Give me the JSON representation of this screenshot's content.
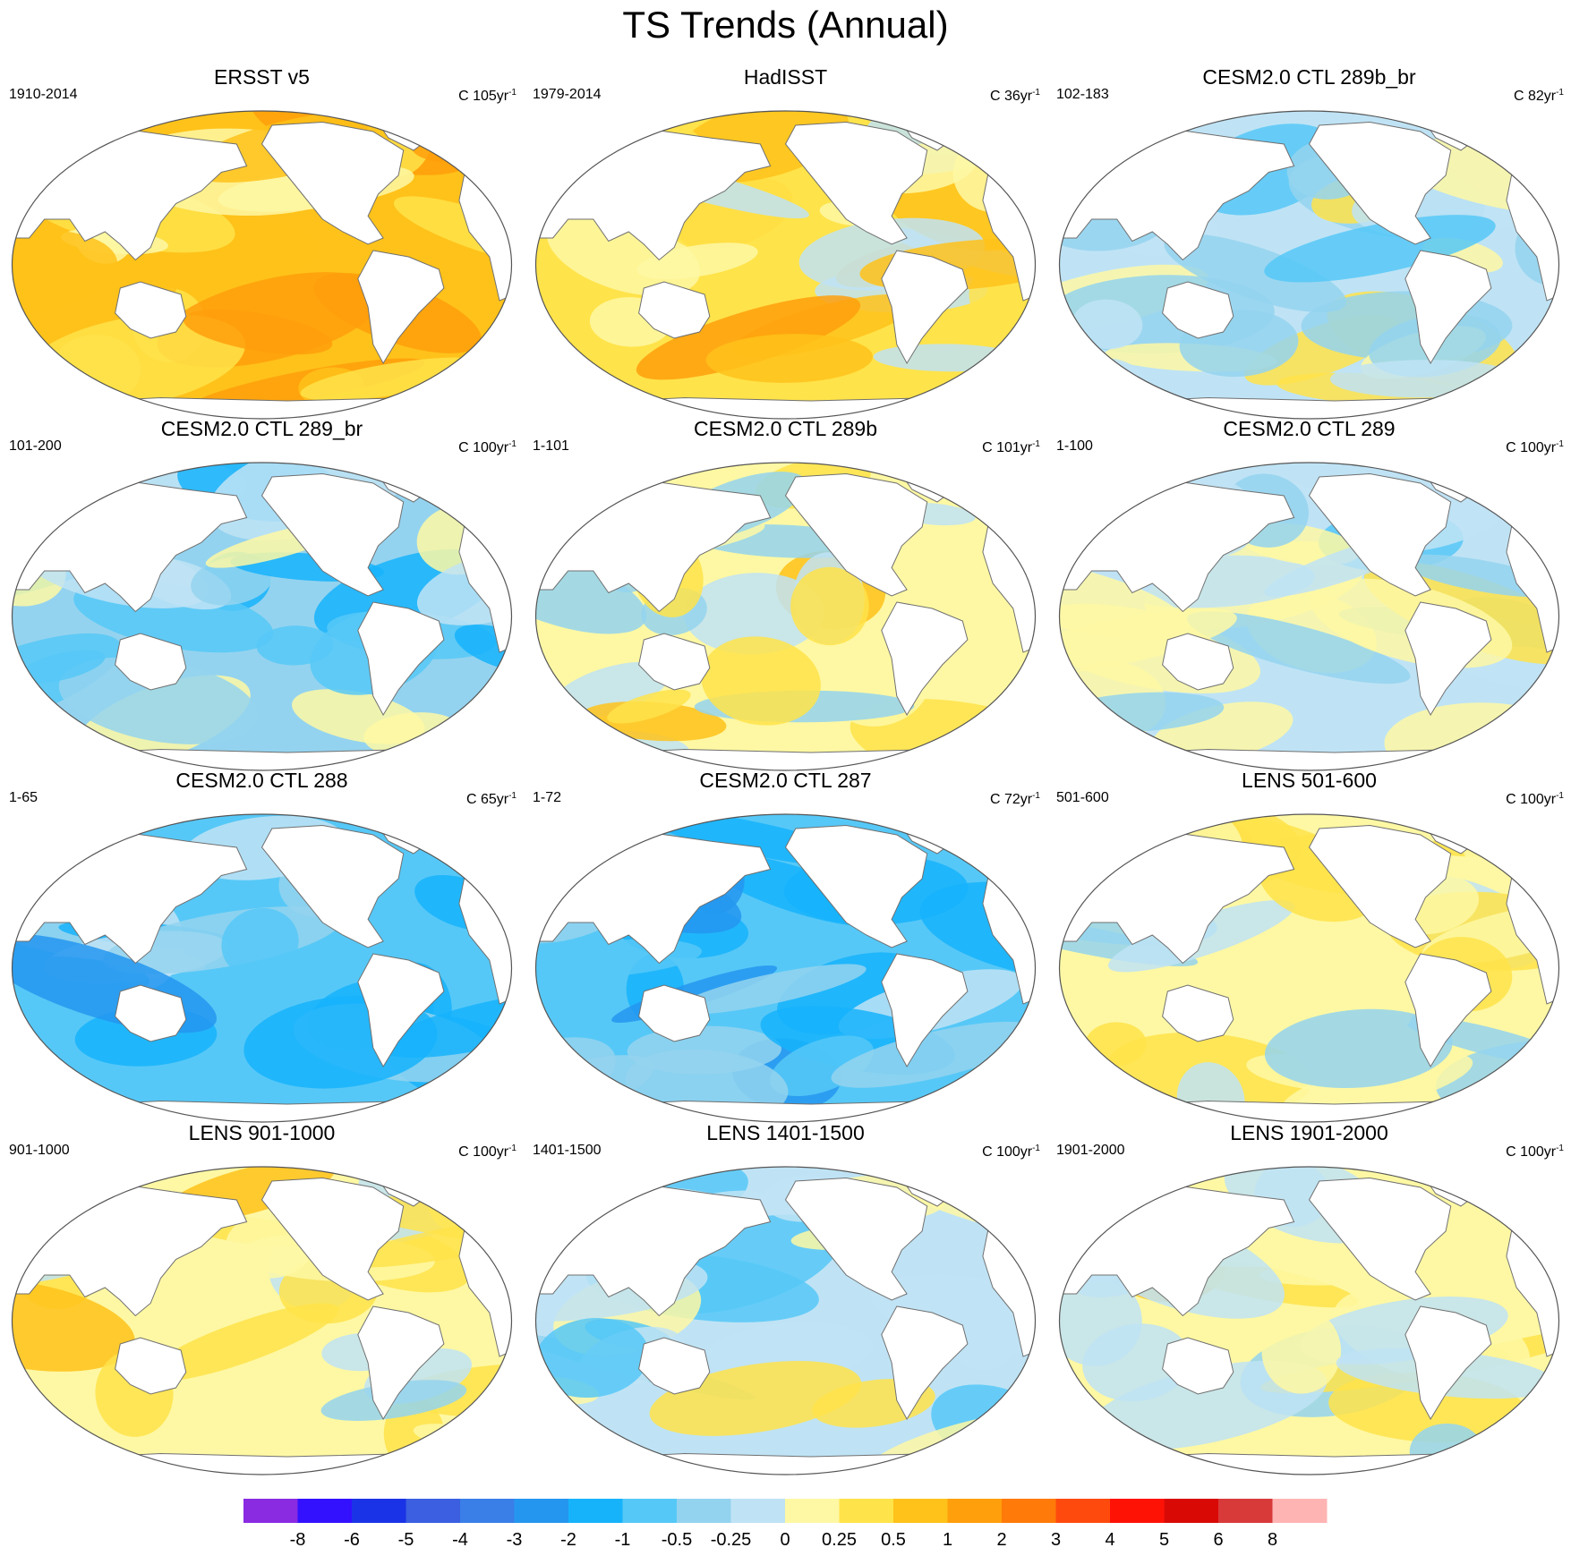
{
  "title": "TS Trends (Annual)",
  "colors": {
    "land": "#ffffff",
    "coast": "#707070",
    "frame": "#555555",
    "levels": [
      "#8a2be2",
      "#3311ff",
      "#1a33e6",
      "#3b5fe0",
      "#3a7fe8",
      "#2596f0",
      "#16b3fb",
      "#56c8f7",
      "#94d3ef",
      "#bfe3f5",
      "#fef8a4",
      "#ffe34a",
      "#ffc21a",
      "#ff9f0c",
      "#ff7a08",
      "#ff4a0d",
      "#ff1206",
      "#d90a06",
      "#d83a3a",
      "#ffb4b4"
    ]
  },
  "chart_data": {
    "type": "heatmap",
    "title": "TS Trends (Annual)",
    "variable": "TS",
    "units": "C",
    "colorbar_labels": [
      "-8",
      "-6",
      "-5",
      "-4",
      "-3",
      "-2",
      "-1",
      "-0.5",
      "-0.25",
      "0",
      "0.25",
      "0.5",
      "1",
      "2",
      "3",
      "4",
      "5",
      "6",
      "8"
    ],
    "colorbar_levels": [
      -8,
      -6,
      -5,
      -4,
      -3,
      -2,
      -1,
      -0.5,
      -0.25,
      0,
      0.25,
      0.5,
      1,
      2,
      3,
      4,
      5,
      6,
      8
    ],
    "legend_position": "bottom",
    "panels": [
      {
        "title": "ERSST v5",
        "period": "1910-2014",
        "trend_prefix": "C 105yr",
        "trend_exp": "-1",
        "dominant_level_index": 12
      },
      {
        "title": "HadISST",
        "period": "1979-2014",
        "trend_prefix": "C 36yr",
        "trend_exp": "-1",
        "dominant_level_index": 11
      },
      {
        "title": "CESM2.0 CTL 289b_br",
        "period": "102-183",
        "trend_prefix": "C 82yr",
        "trend_exp": "-1",
        "dominant_level_index": 9
      },
      {
        "title": "CESM2.0 CTL 289_br",
        "period": "101-200",
        "trend_prefix": "C 100yr",
        "trend_exp": "-1",
        "dominant_level_index": 8
      },
      {
        "title": "CESM2.0 CTL 289b",
        "period": "1-101",
        "trend_prefix": "C 101yr",
        "trend_exp": "-1",
        "dominant_level_index": 10
      },
      {
        "title": "CESM2.0 CTL 289",
        "period": "1-100",
        "trend_prefix": "C 100yr",
        "trend_exp": "-1",
        "dominant_level_index": 9
      },
      {
        "title": "CESM2.0 CTL 288",
        "period": "1-65",
        "trend_prefix": "C 65yr",
        "trend_exp": "-1",
        "dominant_level_index": 7
      },
      {
        "title": "CESM2.0 CTL 287",
        "period": "1-72",
        "trend_prefix": "C 72yr",
        "trend_exp": "-1",
        "dominant_level_index": 7
      },
      {
        "title": "LENS 501-600",
        "period": "501-600",
        "trend_prefix": "C 100yr",
        "trend_exp": "-1",
        "dominant_level_index": 10
      },
      {
        "title": "LENS 901-1000",
        "period": "901-1000",
        "trend_prefix": "C 100yr",
        "trend_exp": "-1",
        "dominant_level_index": 10
      },
      {
        "title": "LENS 1401-1500",
        "period": "1401-1500",
        "trend_prefix": "C 100yr",
        "trend_exp": "-1",
        "dominant_level_index": 9
      },
      {
        "title": "LENS 1901-2000",
        "period": "1901-2000",
        "trend_prefix": "C 100yr",
        "trend_exp": "-1",
        "dominant_level_index": 10
      }
    ]
  }
}
